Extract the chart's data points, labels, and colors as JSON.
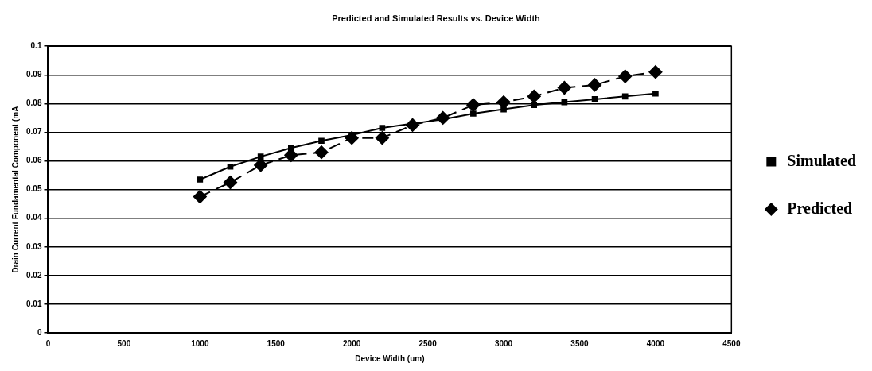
{
  "chart_data": {
    "type": "line",
    "title": "Predicted and Simulated Results vs. Device Width",
    "xlabel": "Device Width (um)",
    "ylabel": "Drain Current Fundamental Component (mA",
    "x": [
      1000,
      1200,
      1400,
      1600,
      1800,
      2000,
      2200,
      2400,
      2600,
      2800,
      3000,
      3200,
      3400,
      3600,
      3800,
      4000
    ],
    "series": [
      {
        "name": "Simulated",
        "color": "#000000",
        "marker": "square",
        "line_style": "solid",
        "values": [
          0.0535,
          0.058,
          0.0615,
          0.0645,
          0.067,
          0.069,
          0.0715,
          0.073,
          0.0745,
          0.0765,
          0.078,
          0.0795,
          0.0805,
          0.0815,
          0.0825,
          0.0835
        ]
      },
      {
        "name": "Predicted",
        "color": "#000000",
        "marker": "diamond",
        "line_style": "dashed",
        "values": [
          0.0475,
          0.0525,
          0.0585,
          0.062,
          0.063,
          0.068,
          0.068,
          0.0725,
          0.075,
          0.0795,
          0.0805,
          0.0825,
          0.0855,
          0.0865,
          0.0895,
          0.091
        ]
      }
    ],
    "xlim": [
      0,
      4500
    ],
    "xticks": [
      0,
      500,
      1000,
      1500,
      2000,
      2500,
      3000,
      3500,
      4000,
      4500
    ],
    "ylim": [
      0,
      0.1
    ],
    "yticks": [
      0,
      0.01,
      0.02,
      0.03,
      0.04,
      0.05,
      0.06,
      0.07,
      0.08,
      0.09,
      0.1
    ],
    "grid": "y",
    "legend": "right"
  }
}
